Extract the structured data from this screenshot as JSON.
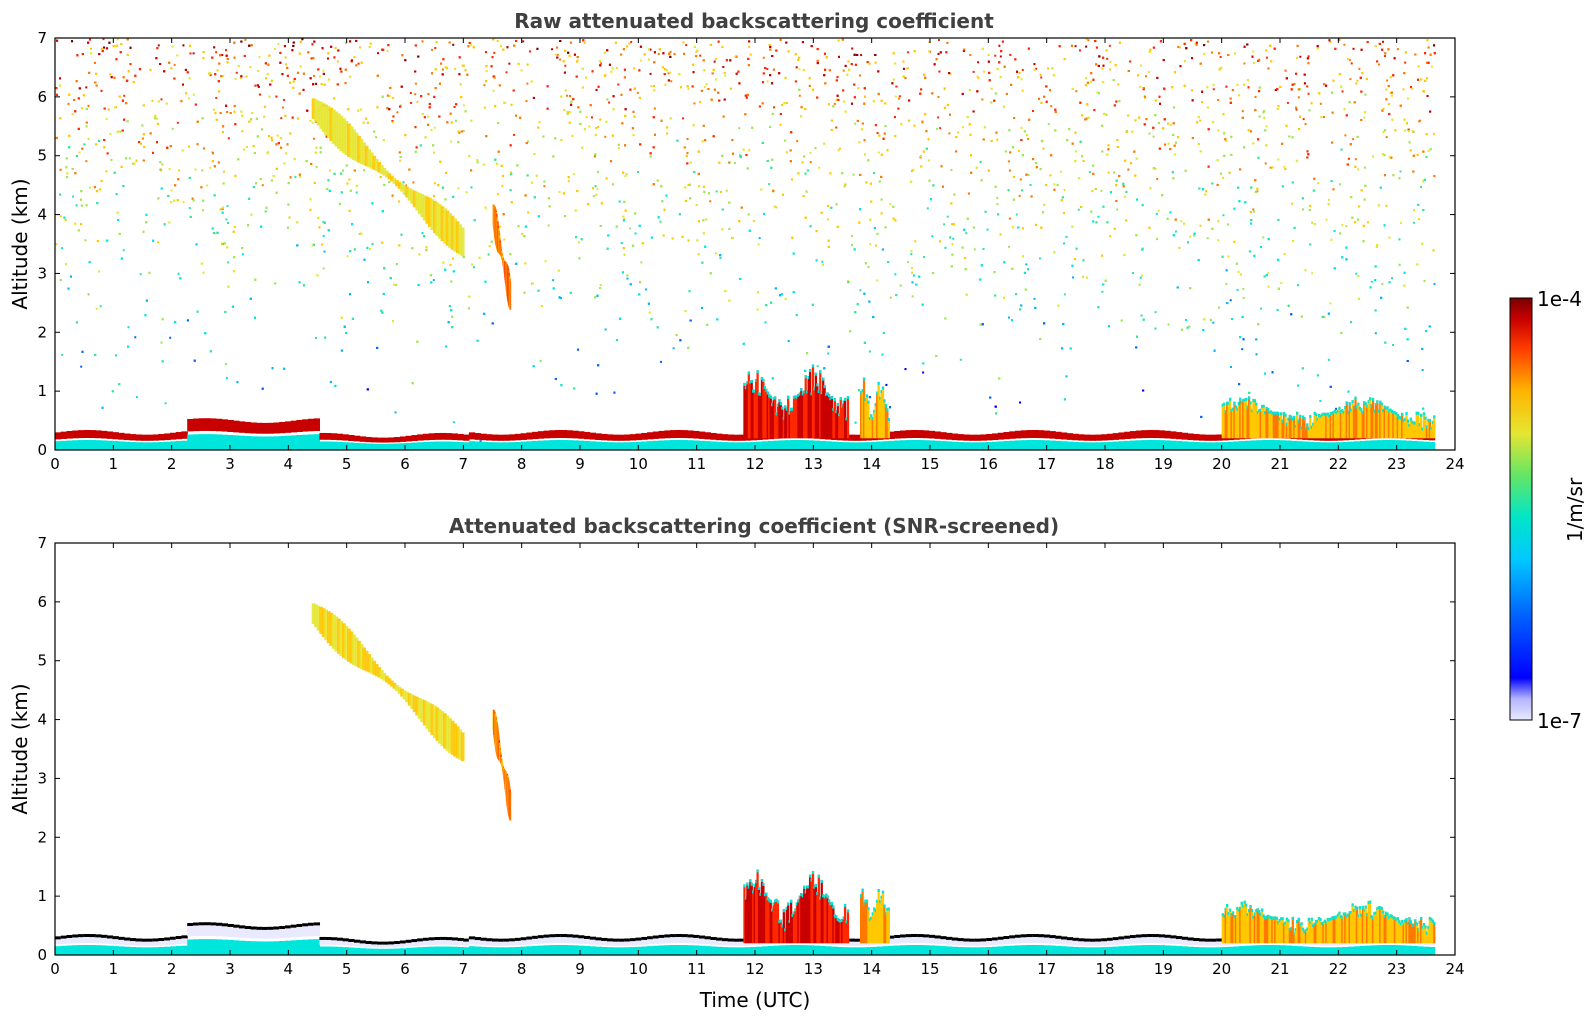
{
  "chart_data": [
    {
      "type": "heatmap",
      "title": "Raw attenuated backscattering coefficient",
      "xlabel": "",
      "ylabel": "Altitude (km)",
      "xlim": [
        0,
        24
      ],
      "ylim": [
        0,
        7
      ],
      "x_ticks": [
        "0",
        "1",
        "2",
        "3",
        "4",
        "5",
        "6",
        "7",
        "8",
        "9",
        "10",
        "11",
        "12",
        "13",
        "14",
        "15",
        "16",
        "17",
        "18",
        "19",
        "20",
        "21",
        "22",
        "23",
        "24"
      ],
      "y_ticks": [
        "0",
        "1",
        "2",
        "3",
        "4",
        "5",
        "6",
        "7"
      ],
      "data_end_time_utc": 23.65,
      "features": [
        {
          "name": "boundary-layer",
          "time_start": 0,
          "time_end": 23.65,
          "altitude_top_km": 0.3,
          "level": "high"
        },
        {
          "name": "cirrus-fall",
          "time_start": 4.4,
          "time_end": 7.0,
          "altitude_start_km": 5.8,
          "altitude_end_km": 3.5,
          "level": "medium"
        },
        {
          "name": "virga",
          "time_start": 7.5,
          "time_end": 7.8,
          "altitude_start_km": 4.0,
          "altitude_end_km": 2.6,
          "level": "medium-high"
        },
        {
          "name": "convective-cloud",
          "time_start": 11.8,
          "time_end": 13.6,
          "altitude_top_km": 1.5,
          "level": "high"
        },
        {
          "name": "convective-cloud",
          "time_start": 13.8,
          "time_end": 14.3,
          "altitude_top_km": 1.3,
          "level": "medium-high"
        },
        {
          "name": "mixed-layer",
          "time_start": 20.0,
          "time_end": 23.65,
          "altitude_top_km": 0.95,
          "level": "medium-high"
        }
      ]
    },
    {
      "type": "heatmap",
      "title": "Attenuated backscattering coefficient (SNR-screened)",
      "xlabel": "Time (UTC)",
      "ylabel": "Altitude (km)",
      "xlim": [
        0,
        24
      ],
      "ylim": [
        0,
        7
      ],
      "x_ticks": [
        "0",
        "1",
        "2",
        "3",
        "4",
        "5",
        "6",
        "7",
        "8",
        "9",
        "10",
        "11",
        "12",
        "13",
        "14",
        "15",
        "16",
        "17",
        "18",
        "19",
        "20",
        "21",
        "22",
        "23",
        "24"
      ],
      "y_ticks": [
        "0",
        "1",
        "2",
        "3",
        "4",
        "5",
        "6",
        "7"
      ],
      "data_end_time_utc": 23.65,
      "features": [
        {
          "name": "boundary-layer",
          "time_start": 0,
          "time_end": 23.65,
          "altitude_top_km": 0.3,
          "level": "high"
        },
        {
          "name": "cirrus-fall",
          "time_start": 4.4,
          "time_end": 7.0,
          "altitude_start_km": 5.8,
          "altitude_end_km": 3.5,
          "level": "medium"
        },
        {
          "name": "virga",
          "time_start": 7.5,
          "time_end": 7.8,
          "altitude_start_km": 4.0,
          "altitude_end_km": 2.5,
          "level": "medium-high"
        },
        {
          "name": "convective-cloud",
          "time_start": 11.8,
          "time_end": 13.6,
          "altitude_top_km": 1.5,
          "level": "high"
        },
        {
          "name": "convective-cloud",
          "time_start": 13.8,
          "time_end": 14.3,
          "altitude_top_km": 1.3,
          "level": "medium-high"
        },
        {
          "name": "mixed-layer",
          "time_start": 20.0,
          "time_end": 23.65,
          "altitude_top_km": 0.95,
          "level": "medium-high"
        }
      ]
    }
  ],
  "colorbar": {
    "label": "1/m/sr",
    "max_label": "1e-4",
    "min_label": "1e-7",
    "colors": [
      "#eaeaff",
      "#c8c8ff",
      "#9a9aff",
      "#0000ff",
      "#0064ff",
      "#00b4ff",
      "#00e6dc",
      "#32e696",
      "#a0e650",
      "#e6e632",
      "#ffc800",
      "#ff7800",
      "#ff2800",
      "#c80000",
      "#7a0000"
    ]
  }
}
